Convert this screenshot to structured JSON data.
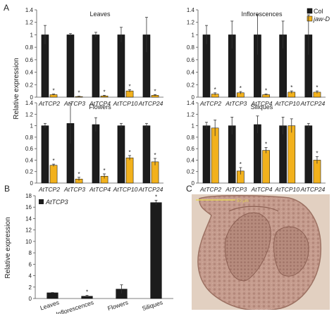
{
  "panel_labels": {
    "a": "A",
    "b": "B",
    "c": "C"
  },
  "legend": {
    "col": "Col",
    "jawd": "jaw-D"
  },
  "ylabel_a": "Relative expression",
  "ylabel_b": "Relative expression",
  "colors": {
    "col": "#1c1c1c",
    "jawd": "#f2b11c",
    "micro_bg": "#e0cdbd",
    "tissue": "#c39a8b"
  },
  "micro_scale_text": "50 μm",
  "chart_data": [
    {
      "type": "bar",
      "title": "Leaves",
      "categories": [
        "AtTCP2",
        "AtTCP3",
        "AtTCP4",
        "AtTCP10",
        "AtTCP24"
      ],
      "series": [
        {
          "name": "Col",
          "values": [
            1.0,
            1.0,
            1.0,
            1.0,
            1.0
          ],
          "errors": [
            0.15,
            0.02,
            0.04,
            0.12,
            0.28
          ]
        },
        {
          "name": "jaw-D",
          "values": [
            0.04,
            0.01,
            0.02,
            0.1,
            0.03
          ],
          "errors": [
            0.01,
            0.005,
            0.01,
            0.02,
            0.01
          ]
        }
      ],
      "significance": [
        "*",
        "*",
        "*",
        "*",
        "*"
      ],
      "ylim": [
        0,
        1.4
      ],
      "yticks": [
        0,
        0.2,
        0.4,
        0.6,
        0.8,
        1,
        1.2,
        1.4
      ]
    },
    {
      "type": "bar",
      "title": "Inflorescences",
      "categories": [
        "AtTCP2",
        "AtTCP3",
        "AtTCP4",
        "AtTCP10",
        "AtTCP24"
      ],
      "series": [
        {
          "name": "Col",
          "values": [
            1.0,
            1.0,
            1.0,
            1.0,
            1.0
          ],
          "errors": [
            0.15,
            0.22,
            0.32,
            0.22,
            0.32
          ]
        },
        {
          "name": "jaw-D",
          "values": [
            0.05,
            0.07,
            0.04,
            0.08,
            0.08
          ],
          "errors": [
            0.02,
            0.02,
            0.01,
            0.02,
            0.02
          ]
        }
      ],
      "significance": [
        "*",
        "*",
        "*",
        "*",
        "*"
      ],
      "ylim": [
        0,
        1.4
      ],
      "yticks": [
        0,
        0.2,
        0.4,
        0.6,
        0.8,
        1,
        1.2,
        1.4
      ]
    },
    {
      "type": "bar",
      "title": "Flowers",
      "categories": [
        "AtTCP2",
        "AtTCP3",
        "AtTCP4",
        "AtTCP10",
        "AtTCP24"
      ],
      "series": [
        {
          "name": "Col",
          "values": [
            1.0,
            1.04,
            1.02,
            1.0,
            1.0
          ],
          "errors": [
            0.04,
            0.35,
            0.12,
            0.04,
            0.04
          ]
        },
        {
          "name": "jaw-D",
          "values": [
            0.31,
            0.07,
            0.12,
            0.44,
            0.37
          ],
          "errors": [
            0.02,
            0.03,
            0.04,
            0.04,
            0.06
          ]
        }
      ],
      "significance": [
        "*",
        "*",
        "*",
        "*",
        "*"
      ],
      "ylim": [
        0,
        1.4
      ],
      "yticks": [
        0,
        0.2,
        0.4,
        0.6,
        0.8,
        1,
        1.2,
        1.4
      ]
    },
    {
      "type": "bar",
      "title": "Siliques",
      "categories": [
        "AtTCP2",
        "AtTCP3",
        "AtTCP4",
        "AtTCP10",
        "AtTCP24"
      ],
      "series": [
        {
          "name": "Col",
          "values": [
            1.0,
            1.0,
            1.02,
            1.0,
            1.0
          ],
          "errors": [
            0.06,
            0.15,
            0.15,
            0.15,
            0.04
          ]
        },
        {
          "name": "jaw-D",
          "values": [
            0.96,
            0.21,
            0.57,
            1.0,
            0.4
          ],
          "errors": [
            0.14,
            0.06,
            0.05,
            0.12,
            0.06
          ]
        }
      ],
      "significance": [
        "",
        "*",
        "*",
        "",
        "*"
      ],
      "ylim": [
        0,
        1.4
      ],
      "yticks": [
        0,
        0.2,
        0.4,
        0.6,
        0.8,
        1,
        1.2,
        1.4
      ]
    },
    {
      "type": "bar",
      "title": "",
      "legend": "AtTCP3",
      "categories": [
        "Leaves",
        "Inflorescences",
        "Flowers",
        "Siliques"
      ],
      "series": [
        {
          "name": "AtTCP3",
          "values": [
            1.0,
            0.4,
            1.65,
            16.8
          ],
          "errors": [
            0.05,
            0.15,
            0.75,
            0.4
          ]
        }
      ],
      "significance": [
        "",
        "*",
        "",
        "*"
      ],
      "ylim": [
        0,
        18
      ],
      "yticks": [
        0,
        2,
        4,
        6,
        8,
        10,
        12,
        14,
        16,
        18
      ]
    }
  ]
}
